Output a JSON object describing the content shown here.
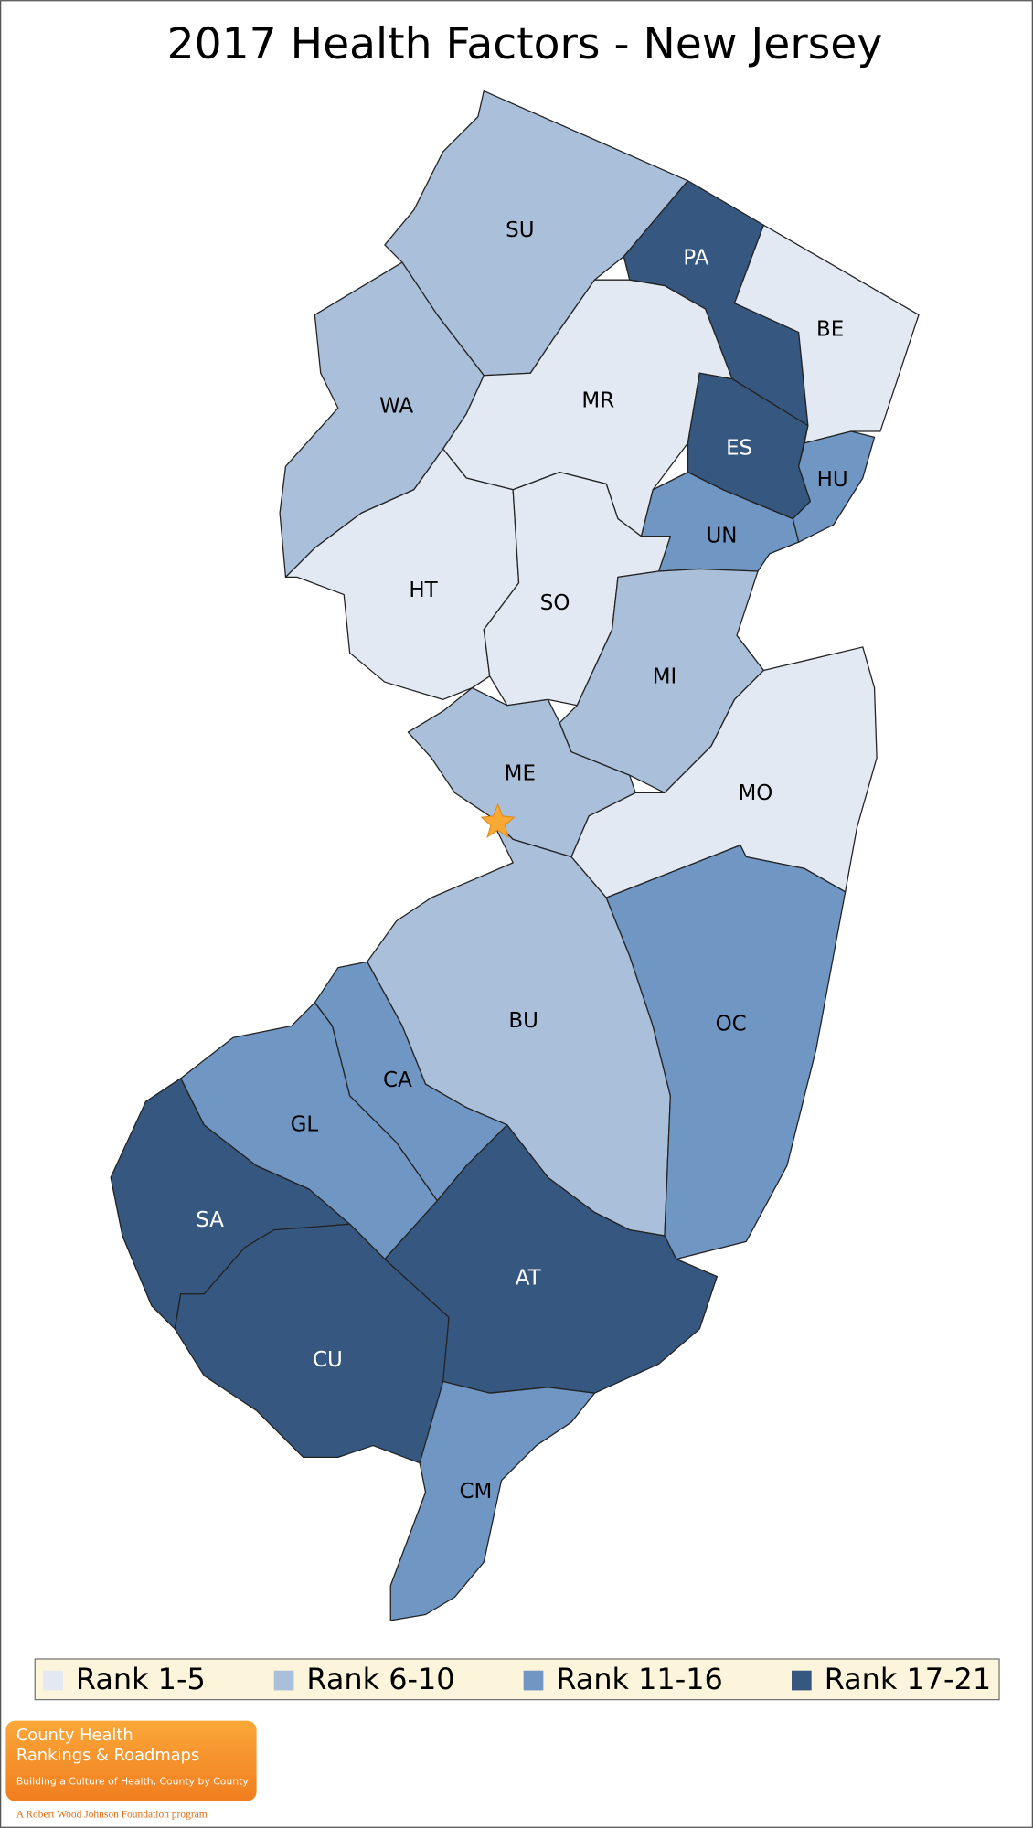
{
  "title": "2017 Health Factors - New Jersey",
  "counties": [
    {
      "label": "SU",
      "color": "#aabfda",
      "text_color": "#000000"
    },
    {
      "label": "PA",
      "color": "#36577f",
      "text_color": "#ffffff"
    },
    {
      "label": "BE",
      "color": "#e2e9f3",
      "text_color": "#000000"
    },
    {
      "label": "WA",
      "color": "#aabfda",
      "text_color": "#000000"
    },
    {
      "label": "MR",
      "color": "#e2e9f3",
      "text_color": "#000000"
    },
    {
      "label": "ES",
      "color": "#36577f",
      "text_color": "#ffffff"
    },
    {
      "label": "HU",
      "color": "#7096c4",
      "text_color": "#000000"
    },
    {
      "label": "UN",
      "color": "#7096c4",
      "text_color": "#000000"
    },
    {
      "label": "HT",
      "color": "#e2e9f3",
      "text_color": "#000000"
    },
    {
      "label": "SO",
      "color": "#e2e9f3",
      "text_color": "#000000"
    },
    {
      "label": "MI",
      "color": "#aabfda",
      "text_color": "#000000"
    },
    {
      "label": "MO",
      "color": "#e2e9f3",
      "text_color": "#000000"
    },
    {
      "label": "ME",
      "color": "#aabfda",
      "text_color": "#000000"
    },
    {
      "label": "BU",
      "color": "#aabfda",
      "text_color": "#000000"
    },
    {
      "label": "OC",
      "color": "#7096c4",
      "text_color": "#000000"
    },
    {
      "label": "CA",
      "color": "#7096c4",
      "text_color": "#000000"
    },
    {
      "label": "GL",
      "color": "#7096c4",
      "text_color": "#000000"
    },
    {
      "label": "SA",
      "color": "#36577f",
      "text_color": "#ffffff"
    },
    {
      "label": "CU",
      "color": "#36577f",
      "text_color": "#ffffff"
    },
    {
      "label": "AT",
      "color": "#36577f",
      "text_color": "#ffffff"
    },
    {
      "label": "CM",
      "color": "#7096c4",
      "text_color": "#000000"
    }
  ],
  "legend": [
    {
      "label": "Rank 1-5",
      "color": "#e2e9f3"
    },
    {
      "label": "Rank 6-10",
      "color": "#aabfda"
    },
    {
      "label": "Rank 11-16",
      "color": "#7096c4"
    },
    {
      "label": "Rank 17-21",
      "color": "#36577f"
    }
  ],
  "logo": {
    "line1": "County Health",
    "line2": "Rankings & Roadmaps",
    "tagline": "Building a Culture of Health, County by County",
    "footer": "A Robert Wood Johnson Foundation program"
  }
}
